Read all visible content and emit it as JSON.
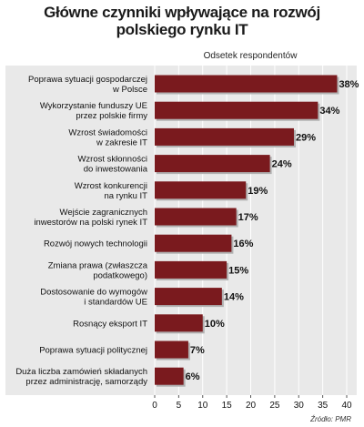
{
  "title_line1": "Główne czynniki wpływające na rozwój",
  "title_line2": "polskiego rynku IT",
  "subtitle": "Odsetek respondentów",
  "source": "Źródło: PMR",
  "colors": {
    "bar": "#7a1a1e",
    "bar_shadow": "#b0b0b0",
    "panel": "#e9e9e9",
    "grid": "#ffffff"
  },
  "chart_data": {
    "type": "bar",
    "orientation": "horizontal",
    "title": "Główne czynniki wpływające na rozwój polskiego rynku IT",
    "xlabel": "Odsetek respondentów",
    "xlim": [
      0,
      40
    ],
    "xticks": [
      0,
      5,
      10,
      15,
      20,
      25,
      30,
      35,
      40
    ],
    "grid": true,
    "categories": [
      [
        "Poprawa sytuacji gospodarczej",
        "w Polsce"
      ],
      [
        "Wykorzystanie funduszy UE",
        "przez polskie firmy"
      ],
      [
        "Wzrost świadomości",
        "w zakresie IT"
      ],
      [
        "Wzrost skłonności",
        "do inwestowania"
      ],
      [
        "Wzrost konkurencji",
        "na rynku IT"
      ],
      [
        "Wejście zagranicznych",
        "inwestorów na polski rynek IT"
      ],
      [
        "Rozwój nowych technologii"
      ],
      [
        "Zmiana prawa (zwłaszcza",
        "podatkowego)"
      ],
      [
        "Dostosowanie do wymogów",
        "i standardów UE"
      ],
      [
        "Rosnący eksport IT"
      ],
      [
        "Poprawa sytuacji politycznej"
      ],
      [
        "Duża liczba zamówień składanych",
        "przez administrację, samorządy"
      ]
    ],
    "values": [
      38,
      34,
      29,
      24,
      19,
      17,
      16,
      15,
      14,
      10,
      7,
      6
    ],
    "value_labels": [
      "38%",
      "34%",
      "29%",
      "24%",
      "19%",
      "17%",
      "16%",
      "15%",
      "14%",
      "10%",
      "7%",
      "6%"
    ]
  }
}
